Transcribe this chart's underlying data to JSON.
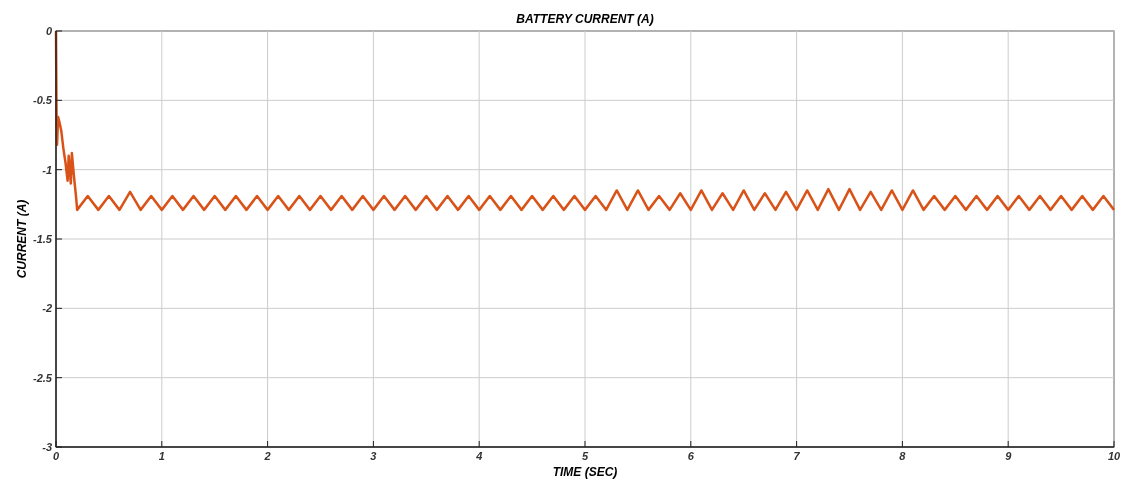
{
  "chart_data": {
    "type": "line",
    "title": "BATTERY CURRENT (A)",
    "xlabel": "TIME (SEC)",
    "ylabel": "CURRENT (A)",
    "xlim": [
      0,
      10
    ],
    "ylim": [
      -3,
      0
    ],
    "xticks": [
      0,
      1,
      2,
      3,
      4,
      5,
      6,
      7,
      8,
      9,
      10
    ],
    "yticks": [
      -3,
      -2.5,
      -2,
      -1.5,
      -1,
      -0.5,
      0
    ],
    "grid": true,
    "series": [
      {
        "color": "#d95319",
        "x": [
          0,
          0.005,
          0.01,
          0.02,
          0.03,
          0.05,
          0.07,
          0.09,
          0.11,
          0.12,
          0.14,
          0.15,
          0.17,
          0.19,
          0.2,
          0.3,
          0.4,
          0.5,
          0.6,
          0.7,
          0.8,
          0.9,
          1,
          1.1,
          1.2,
          1.3,
          1.4,
          1.5,
          1.6,
          1.7,
          1.8,
          1.9,
          2,
          2.1,
          2.2,
          2.3,
          2.4,
          2.5,
          2.6,
          2.7,
          2.8,
          2.9,
          3,
          3.1,
          3.2,
          3.3,
          3.4,
          3.5,
          3.6,
          3.7,
          3.8,
          3.9,
          4,
          4.1,
          4.2,
          4.3,
          4.4,
          4.5,
          4.6,
          4.7,
          4.8,
          4.9,
          5,
          5.1,
          5.2,
          5.3,
          5.4,
          5.5,
          5.6,
          5.7,
          5.8,
          5.9,
          6,
          6.1,
          6.2,
          6.3,
          6.4,
          6.5,
          6.6,
          6.7,
          6.8,
          6.9,
          7,
          7.1,
          7.2,
          7.3,
          7.4,
          7.5,
          7.6,
          7.7,
          7.8,
          7.9,
          8,
          8.1,
          8.2,
          8.3,
          8.4,
          8.5,
          8.6,
          8.7,
          8.8,
          8.9,
          9,
          9.1,
          9.2,
          9.3,
          9.4,
          9.5,
          9.6,
          9.7,
          9.8,
          9.9,
          10
        ],
        "values": [
          0,
          -0.6,
          -0.82,
          -0.62,
          -0.65,
          -0.72,
          -0.85,
          -0.95,
          -1.08,
          -0.9,
          -1.1,
          -0.88,
          -1.05,
          -1.2,
          -1.29,
          -1.19,
          -1.29,
          -1.19,
          -1.29,
          -1.16,
          -1.29,
          -1.19,
          -1.29,
          -1.19,
          -1.29,
          -1.19,
          -1.29,
          -1.19,
          -1.29,
          -1.19,
          -1.29,
          -1.19,
          -1.29,
          -1.19,
          -1.29,
          -1.19,
          -1.29,
          -1.19,
          -1.29,
          -1.19,
          -1.29,
          -1.19,
          -1.29,
          -1.19,
          -1.29,
          -1.19,
          -1.29,
          -1.19,
          -1.29,
          -1.19,
          -1.29,
          -1.19,
          -1.29,
          -1.19,
          -1.29,
          -1.19,
          -1.29,
          -1.19,
          -1.29,
          -1.19,
          -1.29,
          -1.19,
          -1.29,
          -1.19,
          -1.29,
          -1.15,
          -1.29,
          -1.15,
          -1.29,
          -1.19,
          -1.29,
          -1.17,
          -1.29,
          -1.15,
          -1.29,
          -1.17,
          -1.29,
          -1.15,
          -1.29,
          -1.17,
          -1.29,
          -1.16,
          -1.29,
          -1.15,
          -1.29,
          -1.14,
          -1.29,
          -1.14,
          -1.29,
          -1.16,
          -1.29,
          -1.15,
          -1.29,
          -1.15,
          -1.29,
          -1.19,
          -1.29,
          -1.19,
          -1.29,
          -1.19,
          -1.29,
          -1.19,
          -1.29,
          -1.19,
          -1.29,
          -1.19,
          -1.29,
          -1.19,
          -1.29,
          -1.19,
          -1.29,
          -1.19,
          -1.29
        ]
      }
    ]
  }
}
